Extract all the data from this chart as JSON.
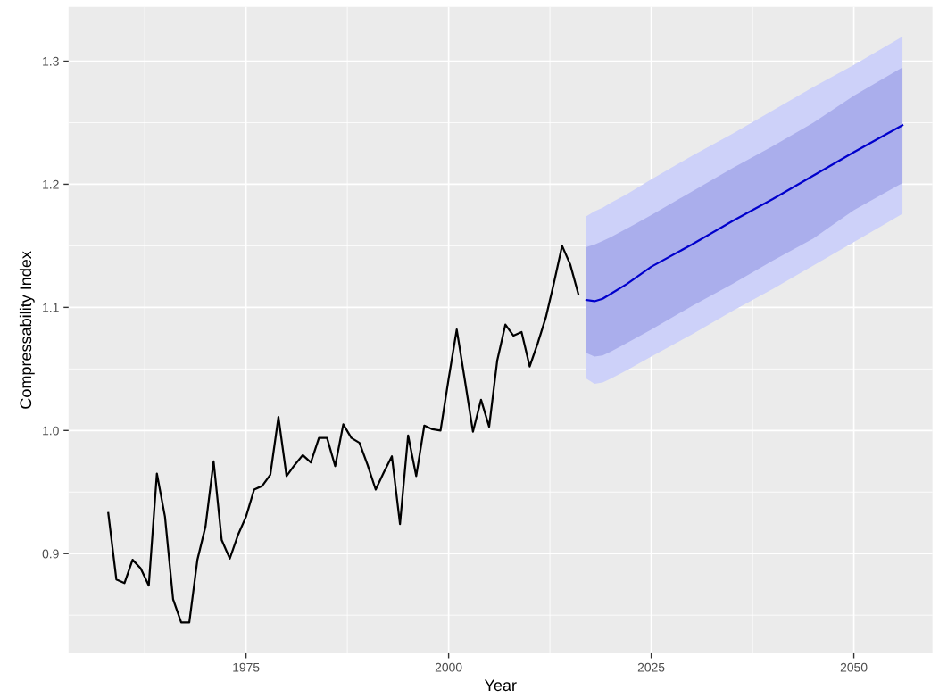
{
  "chart_data": {
    "type": "line",
    "xlabel": "Year",
    "ylabel": "Compressability Index",
    "xlim": [
      1953.1,
      2059.7
    ],
    "ylim": [
      0.819,
      1.344
    ],
    "xticks": [
      1975,
      2000,
      2025,
      2050
    ],
    "yticks": [
      0.9,
      {
        "value": 1.0,
        "label": "1.0"
      },
      1.1,
      1.2,
      1.3
    ],
    "grid": true,
    "line_style": "solid",
    "series": [
      {
        "color": "#000000",
        "x": [
          1958,
          1959,
          1960,
          1961,
          1962,
          1963,
          1964,
          1965,
          1966,
          1967,
          1968,
          1969,
          1970,
          1971,
          1972,
          1973,
          1974,
          1975,
          1976,
          1977,
          1978,
          1979,
          1980,
          1981,
          1982,
          1983,
          1984,
          1985,
          1986,
          1987,
          1988,
          1989,
          1990,
          1991,
          1992,
          1993,
          1994,
          1995,
          1996,
          1997,
          1998,
          1999,
          2000,
          2001,
          2002,
          2003,
          2004,
          2005,
          2006,
          2007,
          2008,
          2009,
          2010,
          2011,
          2012,
          2013,
          2014,
          2015,
          2016
        ],
        "values": [
          0.933,
          0.879,
          0.876,
          0.895,
          0.888,
          0.874,
          0.965,
          0.93,
          0.863,
          0.844,
          0.844,
          0.895,
          0.922,
          0.975,
          0.911,
          0.896,
          0.915,
          0.93,
          0.952,
          0.955,
          0.964,
          1.011,
          0.963,
          0.972,
          0.98,
          0.974,
          0.994,
          0.994,
          0.971,
          1.005,
          0.994,
          0.99,
          0.972,
          0.952,
          0.966,
          0.979,
          0.924,
          0.996,
          0.963,
          1.004,
          1.001,
          1.0,
          1.042,
          1.082,
          1.041,
          0.999,
          1.025,
          1.003,
          1.057,
          1.086,
          1.077,
          1.08,
          1.052,
          1.071,
          1.092,
          1.12,
          1.15,
          1.135,
          1.111
        ]
      },
      {
        "color": "#cdd1f9",
        "x": [
          2017,
          2018,
          2019,
          2020,
          2022,
          2025,
          2030,
          2035,
          2040,
          2045,
          2050,
          2056
        ],
        "values": [
          null,
          null,
          null,
          null,
          null,
          null,
          null,
          null,
          null,
          null,
          null,
          null
        ],
        "lower": [
          1.042,
          1.038,
          1.039,
          1.042,
          1.049,
          1.06,
          1.078,
          1.097,
          1.115,
          1.134,
          1.153,
          1.176
        ],
        "upper": [
          1.174,
          1.178,
          1.181,
          1.185,
          1.192,
          1.204,
          1.223,
          1.241,
          1.26,
          1.279,
          1.297,
          1.32
        ]
      },
      {
        "color": "#aaaeec",
        "x": [
          2017,
          2018,
          2019,
          2020,
          2022,
          2025,
          2030,
          2035,
          2040,
          2045,
          2050,
          2056
        ],
        "values": [
          null,
          null,
          null,
          null,
          null,
          null,
          null,
          null,
          null,
          null,
          null,
          null
        ],
        "lower": [
          1.063,
          1.06,
          1.061,
          1.064,
          1.071,
          1.082,
          1.101,
          1.119,
          1.138,
          1.156,
          1.179,
          1.201
        ],
        "upper": [
          1.149,
          1.151,
          1.154,
          1.157,
          1.164,
          1.175,
          1.194,
          1.213,
          1.231,
          1.25,
          1.272,
          1.295
        ]
      },
      {
        "color": "#0000cc",
        "x": [
          2017,
          2018,
          2019,
          2020,
          2022,
          2025,
          2030,
          2035,
          2040,
          2045,
          2050,
          2056
        ],
        "values": [
          1.106,
          1.105,
          1.107,
          1.111,
          1.119,
          1.133,
          1.151,
          1.17,
          1.188,
          1.207,
          1.226,
          1.248
        ]
      }
    ]
  }
}
